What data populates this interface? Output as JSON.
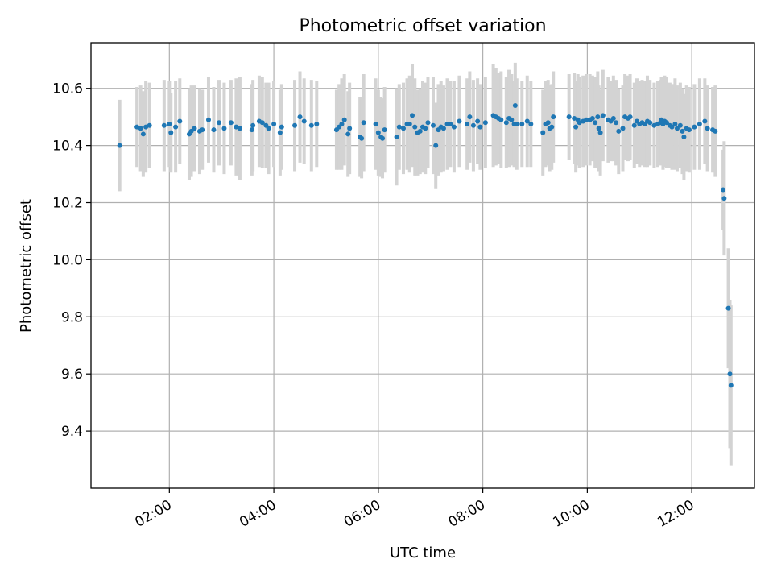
{
  "chart_data": {
    "type": "scatter",
    "title": "Photometric offset variation",
    "xlabel": "UTC time",
    "ylabel": "Photometric offset",
    "x_unit": "hours UTC",
    "xlim": [
      0.5,
      13.2
    ],
    "ylim": [
      9.2,
      10.76
    ],
    "x_ticks": [
      {
        "value": 2,
        "label": "02:00"
      },
      {
        "value": 4,
        "label": "04:00"
      },
      {
        "value": 6,
        "label": "06:00"
      },
      {
        "value": 8,
        "label": "08:00"
      },
      {
        "value": 10,
        "label": "10:00"
      },
      {
        "value": 12,
        "label": "12:00"
      }
    ],
    "y_ticks": [
      {
        "value": 9.4,
        "label": "9.4"
      },
      {
        "value": 9.6,
        "label": "9.6"
      },
      {
        "value": 9.8,
        "label": "9.8"
      },
      {
        "value": 10.0,
        "label": "10.0"
      },
      {
        "value": 10.2,
        "label": "10.2"
      },
      {
        "value": 10.4,
        "label": "10.4"
      },
      {
        "value": 10.6,
        "label": "10.6"
      }
    ],
    "grid": true,
    "colors": {
      "points": "#1f77b4",
      "errorbars": "#d3d3d3"
    },
    "points": [
      [
        1.05,
        10.4,
        0.16
      ],
      [
        1.38,
        10.465,
        0.14
      ],
      [
        1.45,
        10.46,
        0.15
      ],
      [
        1.5,
        10.44,
        0.15
      ],
      [
        1.55,
        10.465,
        0.16
      ],
      [
        1.62,
        10.47,
        0.15
      ],
      [
        1.9,
        10.47,
        0.16
      ],
      [
        2.0,
        10.475,
        0.15
      ],
      [
        2.03,
        10.445,
        0.14
      ],
      [
        2.12,
        10.465,
        0.16
      ],
      [
        2.2,
        10.485,
        0.15
      ],
      [
        2.38,
        10.44,
        0.16
      ],
      [
        2.42,
        10.45,
        0.16
      ],
      [
        2.48,
        10.46,
        0.15
      ],
      [
        2.58,
        10.45,
        0.15
      ],
      [
        2.63,
        10.455,
        0.14
      ],
      [
        2.75,
        10.49,
        0.15
      ],
      [
        2.85,
        10.455,
        0.15
      ],
      [
        2.95,
        10.48,
        0.15
      ],
      [
        3.05,
        10.46,
        0.16
      ],
      [
        3.18,
        10.48,
        0.15
      ],
      [
        3.28,
        10.465,
        0.17
      ],
      [
        3.35,
        10.46,
        0.18
      ],
      [
        3.58,
        10.455,
        0.16
      ],
      [
        3.6,
        10.47,
        0.16
      ],
      [
        3.72,
        10.485,
        0.16
      ],
      [
        3.78,
        10.48,
        0.16
      ],
      [
        3.85,
        10.47,
        0.15
      ],
      [
        3.9,
        10.46,
        0.16
      ],
      [
        4.0,
        10.475,
        0.15
      ],
      [
        4.12,
        10.445,
        0.15
      ],
      [
        4.15,
        10.465,
        0.15
      ],
      [
        4.4,
        10.47,
        0.16
      ],
      [
        4.5,
        10.5,
        0.16
      ],
      [
        4.58,
        10.485,
        0.15
      ],
      [
        4.72,
        10.47,
        0.16
      ],
      [
        4.82,
        10.475,
        0.15
      ],
      [
        5.2,
        10.455,
        0.14
      ],
      [
        5.25,
        10.465,
        0.15
      ],
      [
        5.3,
        10.475,
        0.16
      ],
      [
        5.35,
        10.49,
        0.16
      ],
      [
        5.42,
        10.44,
        0.15
      ],
      [
        5.45,
        10.46,
        0.16
      ],
      [
        5.65,
        10.43,
        0.14
      ],
      [
        5.68,
        10.425,
        0.14
      ],
      [
        5.72,
        10.48,
        0.17
      ],
      [
        5.95,
        10.475,
        0.16
      ],
      [
        6.0,
        10.445,
        0.15
      ],
      [
        6.05,
        10.43,
        0.14
      ],
      [
        6.08,
        10.425,
        0.14
      ],
      [
        6.12,
        10.455,
        0.15
      ],
      [
        6.35,
        10.43,
        0.17
      ],
      [
        6.4,
        10.465,
        0.15
      ],
      [
        6.48,
        10.46,
        0.16
      ],
      [
        6.55,
        10.475,
        0.16
      ],
      [
        6.6,
        10.475,
        0.17
      ],
      [
        6.65,
        10.505,
        0.18
      ],
      [
        6.7,
        10.465,
        0.17
      ],
      [
        6.75,
        10.445,
        0.15
      ],
      [
        6.8,
        10.45,
        0.15
      ],
      [
        6.85,
        10.465,
        0.16
      ],
      [
        6.9,
        10.46,
        0.16
      ],
      [
        6.95,
        10.48,
        0.16
      ],
      [
        7.05,
        10.47,
        0.17
      ],
      [
        7.1,
        10.4,
        0.15
      ],
      [
        7.15,
        10.455,
        0.16
      ],
      [
        7.2,
        10.465,
        0.16
      ],
      [
        7.25,
        10.46,
        0.15
      ],
      [
        7.32,
        10.475,
        0.16
      ],
      [
        7.38,
        10.475,
        0.15
      ],
      [
        7.45,
        10.465,
        0.16
      ],
      [
        7.55,
        10.485,
        0.16
      ],
      [
        7.7,
        10.475,
        0.16
      ],
      [
        7.75,
        10.5,
        0.16
      ],
      [
        7.82,
        10.47,
        0.16
      ],
      [
        7.9,
        10.485,
        0.15
      ],
      [
        7.95,
        10.465,
        0.15
      ],
      [
        8.05,
        10.48,
        0.16
      ],
      [
        8.2,
        10.505,
        0.18
      ],
      [
        8.25,
        10.5,
        0.17
      ],
      [
        8.3,
        10.495,
        0.16
      ],
      [
        8.35,
        10.49,
        0.17
      ],
      [
        8.45,
        10.48,
        0.16
      ],
      [
        8.5,
        10.495,
        0.17
      ],
      [
        8.55,
        10.49,
        0.16
      ],
      [
        8.6,
        10.475,
        0.15
      ],
      [
        8.62,
        10.54,
        0.15
      ],
      [
        8.65,
        10.475,
        0.16
      ],
      [
        8.75,
        10.475,
        0.15
      ],
      [
        8.85,
        10.485,
        0.16
      ],
      [
        8.92,
        10.475,
        0.15
      ],
      [
        9.15,
        10.445,
        0.15
      ],
      [
        9.2,
        10.475,
        0.15
      ],
      [
        9.25,
        10.48,
        0.15
      ],
      [
        9.28,
        10.46,
        0.15
      ],
      [
        9.32,
        10.465,
        0.15
      ],
      [
        9.35,
        10.5,
        0.16
      ],
      [
        9.65,
        10.5,
        0.15
      ],
      [
        9.75,
        10.495,
        0.16
      ],
      [
        9.78,
        10.465,
        0.16
      ],
      [
        9.82,
        10.49,
        0.16
      ],
      [
        9.85,
        10.48,
        0.16
      ],
      [
        9.92,
        10.485,
        0.16
      ],
      [
        9.98,
        10.49,
        0.16
      ],
      [
        10.05,
        10.49,
        0.16
      ],
      [
        10.1,
        10.495,
        0.15
      ],
      [
        10.15,
        10.48,
        0.16
      ],
      [
        10.2,
        10.5,
        0.16
      ],
      [
        10.22,
        10.46,
        0.15
      ],
      [
        10.25,
        10.445,
        0.15
      ],
      [
        10.3,
        10.505,
        0.16
      ],
      [
        10.4,
        10.49,
        0.15
      ],
      [
        10.45,
        10.485,
        0.14
      ],
      [
        10.5,
        10.495,
        0.15
      ],
      [
        10.55,
        10.48,
        0.15
      ],
      [
        10.6,
        10.45,
        0.15
      ],
      [
        10.68,
        10.46,
        0.15
      ],
      [
        10.72,
        10.5,
        0.15
      ],
      [
        10.78,
        10.495,
        0.15
      ],
      [
        10.82,
        10.5,
        0.15
      ],
      [
        10.9,
        10.47,
        0.15
      ],
      [
        10.95,
        10.485,
        0.15
      ],
      [
        11.0,
        10.475,
        0.15
      ],
      [
        11.05,
        10.48,
        0.15
      ],
      [
        11.1,
        10.475,
        0.15
      ],
      [
        11.15,
        10.485,
        0.16
      ],
      [
        11.2,
        10.48,
        0.15
      ],
      [
        11.28,
        10.47,
        0.15
      ],
      [
        11.35,
        10.475,
        0.15
      ],
      [
        11.4,
        10.48,
        0.15
      ],
      [
        11.42,
        10.49,
        0.15
      ],
      [
        11.45,
        10.475,
        0.16
      ],
      [
        11.48,
        10.485,
        0.16
      ],
      [
        11.52,
        10.48,
        0.16
      ],
      [
        11.58,
        10.47,
        0.15
      ],
      [
        11.62,
        10.465,
        0.15
      ],
      [
        11.68,
        10.475,
        0.16
      ],
      [
        11.72,
        10.46,
        0.15
      ],
      [
        11.78,
        10.47,
        0.15
      ],
      [
        11.82,
        10.45,
        0.15
      ],
      [
        11.85,
        10.43,
        0.15
      ],
      [
        11.9,
        10.46,
        0.15
      ],
      [
        11.95,
        10.455,
        0.15
      ],
      [
        12.05,
        10.465,
        0.15
      ],
      [
        12.15,
        10.475,
        0.16
      ],
      [
        12.25,
        10.485,
        0.15
      ],
      [
        12.3,
        10.46,
        0.15
      ],
      [
        12.4,
        10.455,
        0.15
      ],
      [
        12.45,
        10.45,
        0.16
      ],
      [
        12.6,
        10.245,
        0.14
      ],
      [
        12.62,
        10.215,
        0.2
      ],
      [
        12.7,
        9.83,
        0.21
      ],
      [
        12.73,
        9.6,
        0.26
      ],
      [
        12.75,
        9.56,
        0.28
      ]
    ]
  }
}
